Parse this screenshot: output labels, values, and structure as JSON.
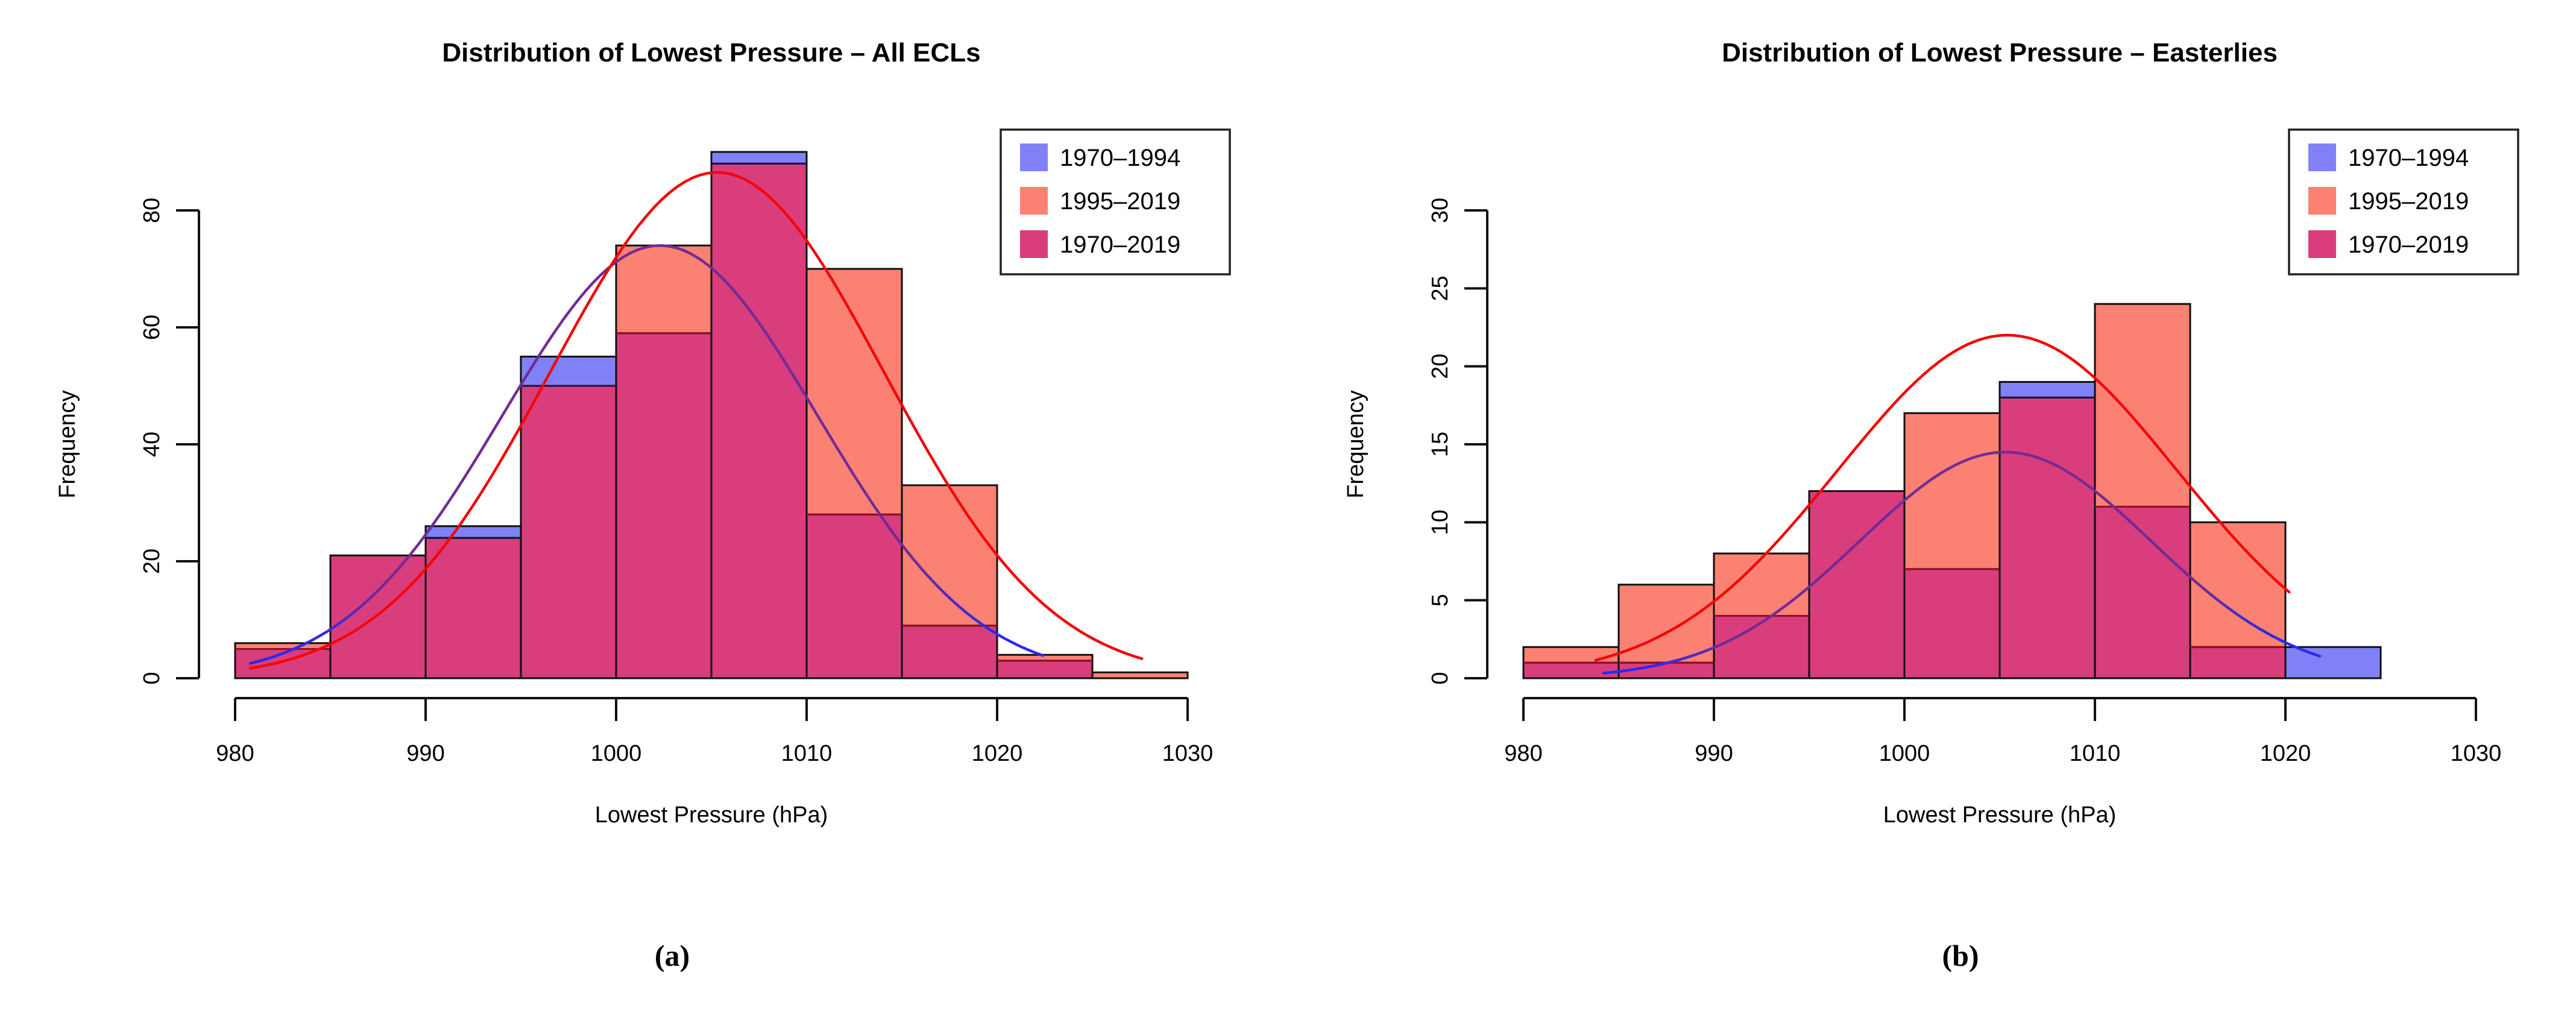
{
  "figure": {
    "background": "#ffffff",
    "captions": [
      "(a)",
      "(b)"
    ],
    "colors": {
      "blue_fill": "#8181F7",
      "salmon_fill": "#FB8173",
      "magenta_fill": "#D93D7C",
      "bar_border": "#0f0f0f",
      "salmon_edge": "#8f1024",
      "blue_edge": "#161645",
      "red_curve": "#F50505",
      "blue_curve": "#2929F0",
      "purple_curve": "#722B96",
      "axis": "#111111",
      "text": "#000000"
    },
    "legend": {
      "items": [
        {
          "label": "1970–1994",
          "color_key": "blue_fill"
        },
        {
          "label": "1995–2019",
          "color_key": "salmon_fill"
        },
        {
          "label": "1970–2019",
          "color_key": "magenta_fill"
        }
      ]
    }
  },
  "chart_data": [
    {
      "type": "histogram-overlay",
      "title": "Distribution of Lowest Pressure – All ECLs",
      "xlabel": "Lowest Pressure (hPa)",
      "ylabel": "Frequency",
      "caption": "(a)",
      "xlim": [
        980,
        1030
      ],
      "x_ticks": [
        980,
        990,
        1000,
        1010,
        1020,
        1030
      ],
      "y_ticks": [
        0,
        20,
        40,
        60,
        80
      ],
      "y_axis_max_tick": 80,
      "bin_start": 980,
      "bin_width": 5,
      "grid": false,
      "legend_position": "top-right",
      "series": [
        {
          "name": "1970–1994",
          "color_key": "blue_fill",
          "values": [
            5,
            21,
            26,
            55,
            59,
            90,
            28,
            9,
            3,
            0
          ]
        },
        {
          "name": "1995–2019",
          "color_key": "salmon_fill",
          "values": [
            6,
            21,
            24,
            50,
            74,
            88,
            70,
            33,
            4,
            1
          ]
        }
      ],
      "overlap_series_label": "1970–2019",
      "overlap_color_key": "magenta_fill",
      "curves": [
        {
          "name": "normal-fit-1970-1994",
          "color_key": "blue_purple_gradient",
          "mu": 1002.3,
          "sigma": 8.28,
          "peak": 74,
          "x_range": [
            980.8,
            1022.6
          ]
        },
        {
          "name": "normal-fit-1995-2019",
          "color_key": "red_curve",
          "mu": 1005.3,
          "sigma": 8.74,
          "peak": 86.5,
          "x_range": [
            980.8,
            1027.6
          ]
        }
      ]
    },
    {
      "type": "histogram-overlay",
      "title": "Distribution of Lowest Pressure – Easterlies",
      "xlabel": "Lowest Pressure (hPa)",
      "ylabel": "Frequency",
      "caption": "(b)",
      "xlim": [
        980,
        1030
      ],
      "x_ticks": [
        980,
        990,
        1000,
        1010,
        1020,
        1030
      ],
      "y_ticks": [
        0,
        5,
        10,
        15,
        20,
        25,
        30
      ],
      "y_axis_max_tick": 30,
      "bin_start": 980,
      "bin_width": 5,
      "grid": false,
      "legend_position": "top-right",
      "series": [
        {
          "name": "1970–1994",
          "color_key": "blue_fill",
          "values": [
            1,
            1,
            4,
            12,
            7,
            19,
            11,
            2,
            2,
            0
          ]
        },
        {
          "name": "1995–2019",
          "color_key": "salmon_fill",
          "values": [
            2,
            6,
            8,
            12,
            17,
            18,
            24,
            10,
            0,
            0
          ]
        }
      ],
      "overlap_series_label": "1970–2019",
      "overlap_color_key": "magenta_fill",
      "curves": [
        {
          "name": "normal-fit-1970-1994",
          "color_key": "blue_purple_gradient",
          "mu": 1005.3,
          "sigma": 7.65,
          "peak": 14.5,
          "x_range": [
            984.2,
            1021.8
          ]
        },
        {
          "name": "normal-fit-1995-2019",
          "color_key": "red_curve",
          "mu": 1005.4,
          "sigma": 8.9,
          "peak": 22,
          "x_range": [
            983.8,
            1020.3
          ]
        }
      ]
    }
  ]
}
